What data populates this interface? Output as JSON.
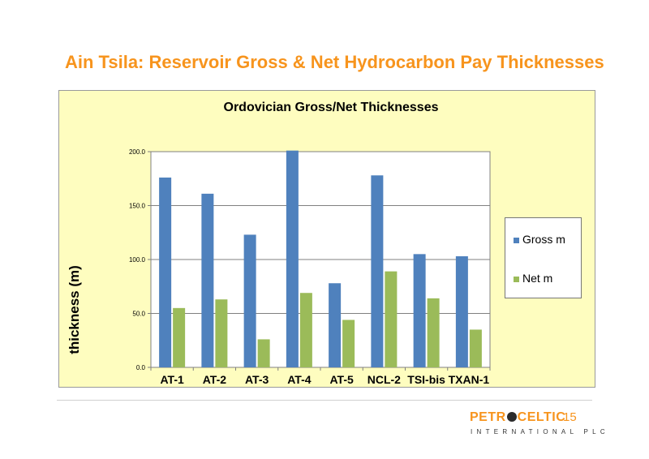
{
  "slide": {
    "title": "Ain Tsila: Reservoir Gross & Net Hydrocarbon Pay Thicknesses",
    "page_number": "15",
    "logo_text_left": "PETR",
    "logo_text_right": "CELTIC",
    "logo_subtext": "INTERNATIONAL PLC"
  },
  "colors": {
    "title": "#f7941d",
    "gross": "#4f81bd",
    "net": "#9bbb59",
    "panel_bg": "#fefdbf"
  },
  "chart_data": {
    "type": "bar",
    "title": "Ordovician Gross/Net Thicknesses",
    "xlabel": "",
    "ylabel": "thickness (m)",
    "ylim": [
      0,
      200
    ],
    "yticks": [
      "0.0",
      "50.0",
      "100.0",
      "150.0",
      "200.0"
    ],
    "grid": true,
    "legend_position": "right",
    "categories": [
      "AT-1",
      "AT-2",
      "AT-3",
      "AT-4",
      "AT-5",
      "NCL-2",
      "TSI-bis",
      "TXAN-1"
    ],
    "series": [
      {
        "name": "Gross m",
        "color": "#4f81bd",
        "values": [
          176,
          161,
          123,
          201,
          78,
          178,
          105,
          103
        ]
      },
      {
        "name": "Net m",
        "color": "#9bbb59",
        "values": [
          55,
          63,
          26,
          69,
          44,
          89,
          64,
          35
        ]
      }
    ]
  }
}
